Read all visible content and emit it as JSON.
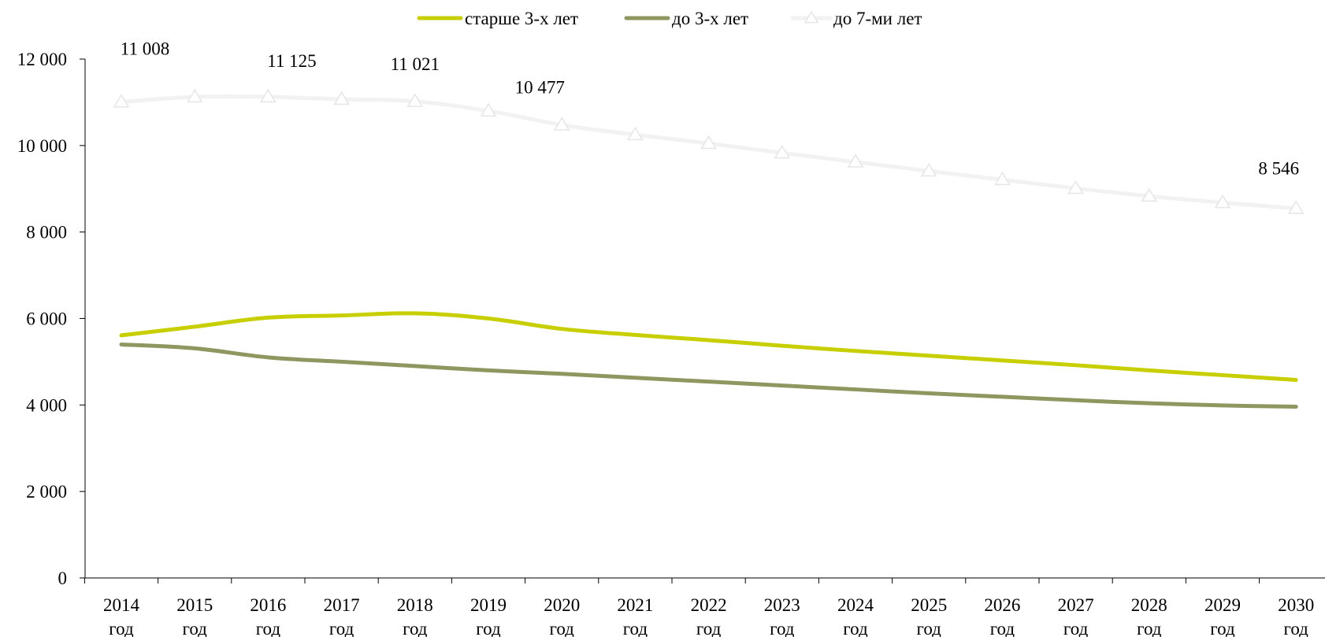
{
  "chart_data": {
    "type": "line",
    "categories": [
      "2014",
      "2015",
      "2016",
      "2017",
      "2018",
      "2019",
      "2020",
      "2021",
      "2022",
      "2023",
      "2024",
      "2025",
      "2026",
      "2027",
      "2028",
      "2029",
      "2030"
    ],
    "category_suffix": "год",
    "series": [
      {
        "name": "старше 3-х лет",
        "color": "#c8cf00",
        "marker": "none",
        "values": [
          5610,
          5810,
          6020,
          6070,
          6120,
          6000,
          5760,
          5620,
          5500,
          5370,
          5250,
          5140,
          5030,
          4920,
          4800,
          4690,
          4580
        ]
      },
      {
        "name": "до 3-х лет",
        "color": "#8f9660",
        "marker": "none",
        "values": [
          5400,
          5310,
          5100,
          5000,
          4900,
          4800,
          4720,
          4630,
          4540,
          4450,
          4360,
          4270,
          4190,
          4110,
          4040,
          3990,
          3960
        ]
      },
      {
        "name": "до 7-ми лет",
        "color": "#f2f2f2",
        "marker": "triangle",
        "values": [
          11008,
          11125,
          11125,
          11070,
          11021,
          10800,
          10477,
          10250,
          10050,
          9830,
          9620,
          9410,
          9210,
          9010,
          8830,
          8680,
          8546
        ]
      }
    ],
    "data_labels": [
      {
        "series": 2,
        "index": 0,
        "text": "11 008"
      },
      {
        "series": 2,
        "index": 2,
        "text": "11 125"
      },
      {
        "series": 2,
        "index": 4,
        "text": "11 021"
      },
      {
        "series": 2,
        "index": 6,
        "text": "10 477"
      },
      {
        "series": 2,
        "index": 16,
        "text": "8 546"
      }
    ],
    "ylim": [
      0,
      12000
    ],
    "yticks": [
      0,
      2000,
      4000,
      6000,
      8000,
      10000,
      12000
    ],
    "ytick_labels": [
      "0",
      "2 000",
      "4 000",
      "6 000",
      "8 000",
      "10 000",
      "12 000"
    ],
    "grid": false,
    "legend": "top-center",
    "title": "",
    "xlabel": "",
    "ylabel": ""
  }
}
